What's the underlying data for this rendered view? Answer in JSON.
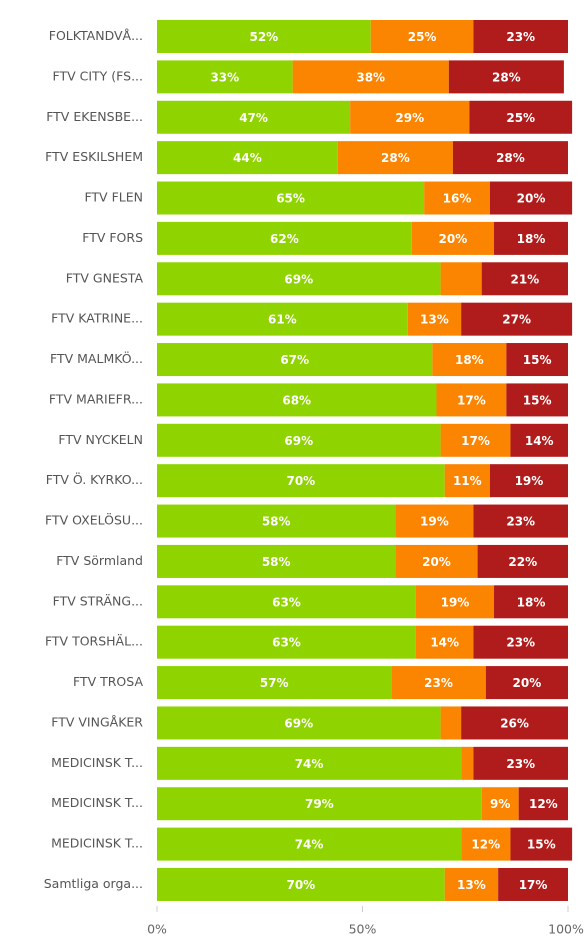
{
  "chart_data": {
    "type": "bar",
    "orientation": "horizontal",
    "stacked": true,
    "categories": [
      "FOLKTANDVÅ...",
      "FTV CITY (FS...",
      "FTV EKENSBE...",
      "FTV ESKILSHEM",
      "FTV FLEN",
      "FTV FORS",
      "FTV GNESTA",
      "FTV KATRINE...",
      "FTV MALMKÖ...",
      "FTV MARIEFR...",
      "FTV NYCKELN",
      "FTV Ö. KYRKO...",
      "FTV OXELÖSU...",
      "FTV Sörmland",
      "FTV STRÄNG...",
      "FTV TORSHÄL...",
      "FTV TROSA",
      "FTV VINGÅKER",
      "MEDICINSK T...",
      "MEDICINSK T...",
      "MEDICINSK T...",
      "Samtliga orga..."
    ],
    "series": [
      {
        "color": "#8fd400",
        "values": [
          52,
          33,
          47,
          44,
          65,
          62,
          69,
          61,
          67,
          68,
          69,
          70,
          58,
          58,
          63,
          63,
          57,
          69,
          74,
          79,
          74,
          70
        ],
        "value_labels": [
          "52%",
          "33%",
          "47%",
          "44%",
          "65%",
          "62%",
          "69%",
          "61%",
          "67%",
          "68%",
          "69%",
          "70%",
          "58%",
          "58%",
          "63%",
          "63%",
          "57%",
          "69%",
          "74%",
          "79%",
          "74%",
          "70%"
        ]
      },
      {
        "color": "#fb8400",
        "values": [
          25,
          38,
          29,
          28,
          16,
          20,
          10,
          13,
          18,
          17,
          17,
          11,
          19,
          20,
          19,
          14,
          23,
          5,
          3,
          9,
          12,
          13
        ],
        "value_labels": [
          "25%",
          "38%",
          "29%",
          "28%",
          "16%",
          "20%",
          null,
          "13%",
          "18%",
          "17%",
          "17%",
          "11%",
          "19%",
          "20%",
          "19%",
          "14%",
          "23%",
          null,
          null,
          "9%",
          "12%",
          "13%"
        ]
      },
      {
        "color": "#b01c1c",
        "values": [
          23,
          28,
          25,
          28,
          20,
          18,
          21,
          27,
          15,
          15,
          14,
          19,
          23,
          22,
          18,
          23,
          20,
          26,
          23,
          12,
          15,
          17
        ],
        "value_labels": [
          "23%",
          "28%",
          "25%",
          "28%",
          "20%",
          "18%",
          "21%",
          "27%",
          "15%",
          "15%",
          "14%",
          "19%",
          "23%",
          "22%",
          "18%",
          "23%",
          "20%",
          "26%",
          "23%",
          "12%",
          "15%",
          "17%"
        ]
      }
    ],
    "xlim": [
      0,
      100
    ],
    "xticks": [
      {
        "value": 0,
        "label": "0%"
      },
      {
        "value": 50,
        "label": "50%"
      },
      {
        "value": 100,
        "label": "100%"
      }
    ]
  }
}
